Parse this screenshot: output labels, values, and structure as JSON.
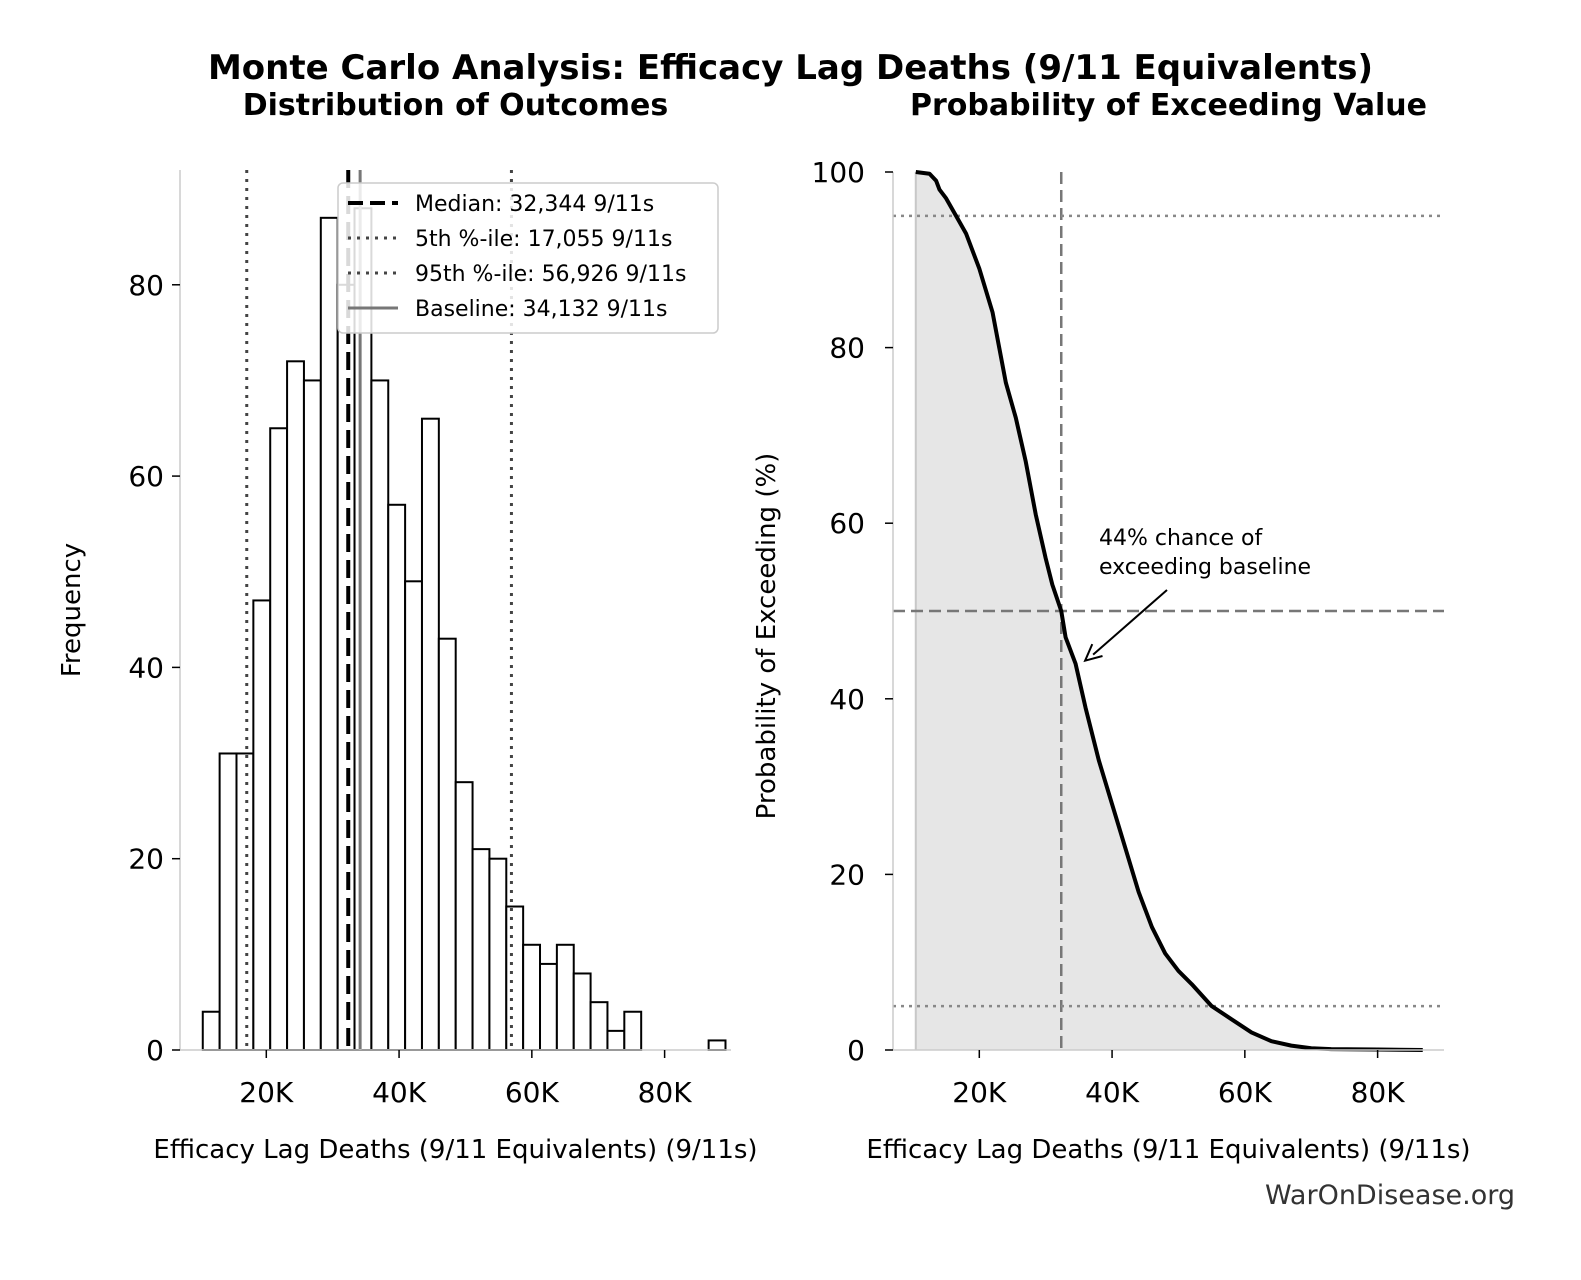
{
  "figure": {
    "title": "Monte Carlo Analysis: Efficacy Lag Deaths (9/11 Equivalents)",
    "watermark": "WarOnDisease.org"
  },
  "chart_data": [
    {
      "type": "bar",
      "title": "Distribution of Outcomes",
      "xlabel": "Efficacy Lag Deaths (9/11 Equivalents) (9/11s)",
      "ylabel": "Frequency",
      "xlim": [
        7000,
        90000
      ],
      "ylim": [
        0,
        92
      ],
      "xticks": [
        20000,
        40000,
        60000,
        80000
      ],
      "xtick_labels": [
        "20K",
        "40K",
        "60K",
        "80K"
      ],
      "yticks": [
        0,
        20,
        40,
        60,
        80
      ],
      "yticks_labels": [
        "0",
        "20",
        "40",
        "60",
        "80"
      ],
      "bin_start": 10430,
      "bin_width": 2540,
      "values": [
        4,
        31,
        31,
        47,
        65,
        72,
        70,
        87,
        80,
        88,
        70,
        57,
        49,
        66,
        43,
        28,
        21,
        20,
        15,
        11,
        9,
        11,
        8,
        5,
        2,
        4,
        0,
        0,
        0,
        0,
        1
      ],
      "reference_lines": [
        {
          "name": "median",
          "label": "Median: 32,344 9/11s",
          "x": 32344,
          "style": "dashed",
          "color": "#000000"
        },
        {
          "name": "p5",
          "label": "5th %-ile: 17,055 9/11s",
          "x": 17055,
          "style": "dotted",
          "color": "#444444"
        },
        {
          "name": "p95",
          "label": "95th %-ile: 56,926 9/11s",
          "x": 56926,
          "style": "dotted",
          "color": "#444444"
        },
        {
          "name": "baseline",
          "label": "Baseline: 34,132 9/11s",
          "x": 34132,
          "style": "solid",
          "color": "#777777"
        }
      ],
      "legend_position": "upper-right",
      "grid": false
    },
    {
      "type": "area",
      "title": "Probability of Exceeding Value",
      "xlabel": "Efficacy Lag Deaths (9/11 Equivalents) (9/11s)",
      "ylabel": "Probability of Exceeding (%)",
      "xlim": [
        7000,
        90000
      ],
      "ylim": [
        0,
        100
      ],
      "xticks": [
        20000,
        40000,
        60000,
        80000
      ],
      "xtick_labels": [
        "20K",
        "40K",
        "60K",
        "80K"
      ],
      "yticks": [
        0,
        20,
        40,
        60,
        80,
        100
      ],
      "ytick_labels": [
        "0",
        "20",
        "40",
        "60",
        "80",
        "100"
      ],
      "x": [
        10430,
        12500,
        13500,
        14000,
        15000,
        16500,
        18000,
        20000,
        22000,
        23000,
        24000,
        25500,
        27000,
        28500,
        30000,
        31000,
        32344,
        33000,
        34500,
        36000,
        38000,
        40000,
        42000,
        44000,
        46000,
        48000,
        50000,
        52000,
        55000,
        58000,
        61000,
        64000,
        67000,
        70000,
        73000,
        80000,
        86800
      ],
      "y": [
        100,
        99.8,
        99,
        98,
        97,
        95,
        93,
        89,
        84,
        80,
        76,
        72,
        67,
        61,
        56,
        53,
        50,
        47,
        44,
        39,
        33,
        28,
        23,
        18,
        14,
        11,
        9,
        7.5,
        5,
        3.5,
        2,
        1,
        0.5,
        0.2,
        0.1,
        0.05,
        0
      ],
      "reference_lines": [
        {
          "name": "median-x",
          "orientation": "vertical",
          "x": 32344,
          "style": "dashed",
          "color": "#777777"
        },
        {
          "name": "y-50",
          "orientation": "horizontal",
          "y": 50,
          "style": "dashed",
          "color": "#777777"
        },
        {
          "name": "y-95",
          "orientation": "horizontal",
          "y": 95,
          "style": "dotted",
          "color": "#888888"
        },
        {
          "name": "y-5",
          "orientation": "horizontal",
          "y": 5,
          "style": "dotted",
          "color": "#888888"
        }
      ],
      "fill_color": "#e6e6e6",
      "annotation": {
        "text_lines": [
          "44% chance of",
          "exceeding baseline"
        ],
        "x": 34132,
        "y": 44
      },
      "grid": false
    }
  ]
}
